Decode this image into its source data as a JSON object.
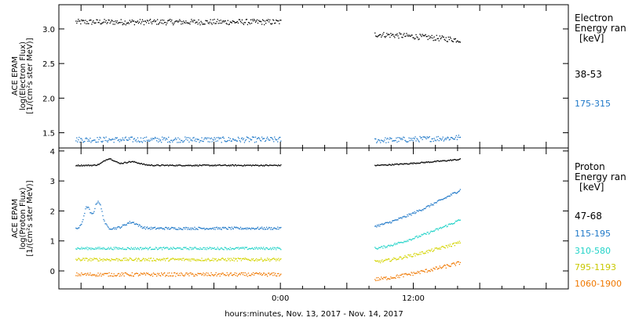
{
  "chart_data": [
    {
      "type": "scatter",
      "ylabel_lines": [
        "ACE EPAM",
        "log(Electron Flux)",
        "[1/(cm²s ster MeV)]"
      ],
      "yticks": [
        "1.5",
        "2.0",
        "2.5",
        "3.0"
      ],
      "ylim": [
        1.28,
        3.35
      ],
      "legend_title": [
        "Electron",
        "Energy ran",
        "[keV]"
      ],
      "series": [
        {
          "name": "38-53",
          "color": "#000000",
          "level": 3.1,
          "level2": 2.92,
          "trend2": -0.08,
          "noise": 0.04,
          "bumps": []
        },
        {
          "name": "175-315",
          "color": "#1f78c8",
          "level": 1.4,
          "level2": 1.39,
          "trend2": 0.04,
          "noise": 0.04,
          "bumps": []
        }
      ]
    },
    {
      "type": "scatter",
      "ylabel_lines": [
        "ACE EPAM",
        "log(Proton Flux)",
        "[1/(cm²s ster MeV)]"
      ],
      "yticks": [
        "0",
        "1",
        "2",
        "3",
        "4"
      ],
      "ylim": [
        -0.6,
        4.1
      ],
      "legend_title": [
        "Proton",
        "Energy ran",
        "[keV]"
      ],
      "series": [
        {
          "name": "47-68",
          "color": "#000000",
          "level": 3.52,
          "level2": 3.52,
          "trend2": 0.2,
          "noise": 0.02,
          "bumps": [
            [
              -15.5,
              0.22,
              0.7
            ],
            [
              -13.5,
              0.12,
              1.0
            ]
          ]
        },
        {
          "name": "115-195",
          "color": "#1f78c8",
          "level": 1.42,
          "level2": 1.5,
          "trend2": 1.2,
          "noise": 0.04,
          "bumps": [
            [
              -17.5,
              0.7,
              0.4
            ],
            [
              -16.5,
              0.9,
              0.5
            ],
            [
              -13.5,
              0.2,
              0.8
            ]
          ]
        },
        {
          "name": "310-580",
          "color": "#22d3c8",
          "level": 0.75,
          "level2": 0.75,
          "trend2": 0.95,
          "noise": 0.04,
          "bumps": []
        },
        {
          "name": "795-1193",
          "color": "#d4d400",
          "level": 0.38,
          "level2": 0.3,
          "trend2": 0.65,
          "noise": 0.05,
          "bumps": []
        },
        {
          "name": "1060-1900",
          "color": "#f07800",
          "level": -0.12,
          "level2": -0.28,
          "trend2": 0.55,
          "noise": 0.06,
          "bumps": []
        }
      ]
    }
  ],
  "xaxis": {
    "label": "hours:minutes, Nov. 13, 2017 - Nov. 14, 2017",
    "range_hours": [
      -20,
      26
    ],
    "ticks": [
      {
        "value": 0,
        "label": "0:00"
      },
      {
        "value": 12,
        "label": "12:00"
      }
    ],
    "data_segments": [
      [
        -18.5,
        0
      ],
      [
        8.5,
        16.2
      ]
    ]
  }
}
